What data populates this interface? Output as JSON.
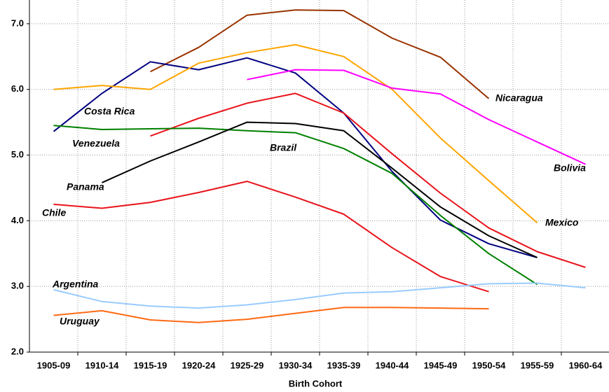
{
  "chart_data": {
    "type": "line",
    "x_label": "Birth Cohort",
    "categories": [
      "1905-09",
      "1910-14",
      "1915-19",
      "1920-24",
      "1925-29",
      "1930-34",
      "1935-39",
      "1940-44",
      "1945-49",
      "1950-54",
      "1955-59",
      "1960-64"
    ],
    "ylim": [
      2,
      7.5
    ],
    "yticks": [
      {
        "value": 2,
        "label": "2.0"
      },
      {
        "value": 3,
        "label": "3.0"
      },
      {
        "value": 4,
        "label": "4.0"
      },
      {
        "value": 5,
        "label": "5.0"
      },
      {
        "value": 6,
        "label": "6.0"
      },
      {
        "value": 7,
        "label": "7.0"
      }
    ],
    "grid": true,
    "series": [
      {
        "name": "Nicaragua",
        "color": "#993300",
        "values": [
          null,
          null,
          6.27,
          6.64,
          7.13,
          7.21,
          7.2,
          6.78,
          6.49,
          5.86,
          null,
          null
        ]
      },
      {
        "name": "Costa Rica",
        "color": "#000080",
        "values": [
          5.36,
          5.94,
          6.42,
          6.3,
          6.48,
          6.25,
          5.64,
          4.75,
          4.01,
          3.65,
          3.44,
          null
        ]
      },
      {
        "name": "Mexico",
        "color": "#ffa500",
        "values": [
          6.0,
          6.06,
          6.0,
          6.4,
          6.56,
          6.68,
          6.5,
          6.0,
          5.26,
          4.61,
          3.97,
          null
        ]
      },
      {
        "name": "Bolivia",
        "color": "#ff00ff",
        "values": [
          null,
          null,
          null,
          null,
          6.15,
          6.3,
          6.29,
          6.02,
          5.93,
          5.54,
          5.2,
          4.86
        ]
      },
      {
        "name": "Venezuela",
        "color": "#e8141b",
        "values": [
          null,
          null,
          5.29,
          5.56,
          5.79,
          5.94,
          5.64,
          5.02,
          4.42,
          3.89,
          3.53,
          3.29
        ]
      },
      {
        "name": "Brazil",
        "color": "#008000",
        "values": [
          5.45,
          5.39,
          5.4,
          5.41,
          5.37,
          5.34,
          5.1,
          4.72,
          4.08,
          3.5,
          3.03,
          null
        ]
      },
      {
        "name": "Panama",
        "color": "#000000",
        "values": [
          null,
          4.58,
          4.91,
          5.2,
          5.5,
          5.48,
          5.37,
          4.8,
          4.21,
          3.77,
          3.44,
          null
        ]
      },
      {
        "name": "Chile",
        "color": "#e8141b",
        "values": [
          4.25,
          4.19,
          4.28,
          4.43,
          4.6,
          4.36,
          4.1,
          3.59,
          3.15,
          2.92,
          null,
          null
        ]
      },
      {
        "name": "Argentina",
        "color": "#99ccff",
        "values": [
          2.95,
          2.77,
          2.7,
          2.67,
          2.72,
          2.8,
          2.9,
          2.92,
          2.98,
          3.04,
          3.05,
          2.98
        ]
      },
      {
        "name": "Uruguay",
        "color": "#ff6a13",
        "values": [
          2.56,
          2.63,
          2.49,
          2.45,
          2.5,
          2.59,
          2.68,
          2.68,
          2.67,
          2.66,
          null,
          null
        ]
      }
    ]
  }
}
